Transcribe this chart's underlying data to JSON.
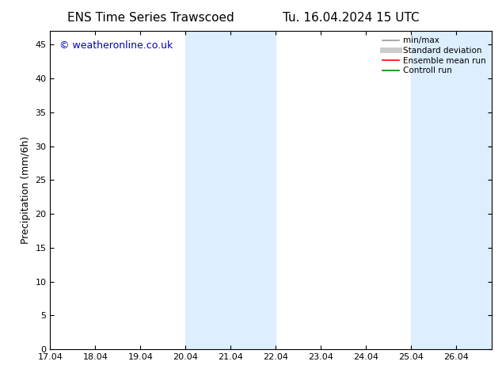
{
  "title_left": "ENS Time Series Trawscoed",
  "title_right": "Tu. 16.04.2024 15 UTC",
  "ylabel": "Precipitation (mm/6h)",
  "watermark": "© weatheronline.co.uk",
  "xlim_start": 17.04,
  "xlim_end": 26.833,
  "ylim": [
    0,
    47
  ],
  "yticks": [
    0,
    5,
    10,
    15,
    20,
    25,
    30,
    35,
    40,
    45
  ],
  "xtick_labels": [
    "17.04",
    "18.04",
    "19.04",
    "20.04",
    "21.04",
    "22.04",
    "23.04",
    "24.04",
    "25.04",
    "26.04"
  ],
  "xtick_positions": [
    17.04,
    18.04,
    19.04,
    20.04,
    21.04,
    22.04,
    23.04,
    24.04,
    25.04,
    26.04
  ],
  "shaded_bands": [
    {
      "xmin": 20.04,
      "xmax": 22.04
    },
    {
      "xmin": 25.04,
      "xmax": 26.833
    }
  ],
  "shade_color": "#ddeeff",
  "legend_entries": [
    {
      "label": "min/max",
      "color": "#999999",
      "lw": 1.2,
      "ls": "-"
    },
    {
      "label": "Standard deviation",
      "color": "#cccccc",
      "lw": 5,
      "ls": "-"
    },
    {
      "label": "Ensemble mean run",
      "color": "#ff0000",
      "lw": 1.2,
      "ls": "-"
    },
    {
      "label": "Controll run",
      "color": "#008000",
      "lw": 1.2,
      "ls": "-"
    }
  ],
  "watermark_color": "#0000cc",
  "watermark_fontsize": 9,
  "title_fontsize": 11,
  "axis_fontsize": 9,
  "tick_fontsize": 8,
  "background_color": "#ffffff"
}
